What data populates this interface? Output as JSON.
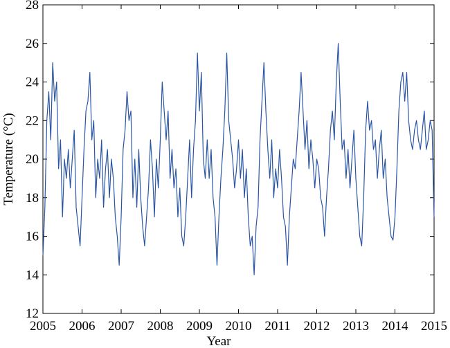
{
  "chart_data": {
    "type": "line",
    "x_label": "Year",
    "y_label": "Temperature (°C)",
    "xlim": [
      2005,
      2015
    ],
    "xticks": [
      2005,
      2006,
      2007,
      2008,
      2009,
      2010,
      2011,
      2012,
      2013,
      2014,
      2015
    ],
    "ylim": [
      12,
      28
    ],
    "yticks": [
      12,
      14,
      16,
      18,
      20,
      22,
      24,
      26,
      28
    ],
    "series": [
      {
        "color": "#2a55a5",
        "x": [
          2005,
          2005.05,
          2005.1,
          2005.15,
          2005.2,
          2005.25,
          2005.3,
          2005.35,
          2005.4,
          2005.45,
          2005.5,
          2005.55,
          2005.6,
          2005.65,
          2005.7,
          2005.75,
          2005.8,
          2005.85,
          2005.9,
          2005.95,
          2006,
          2006.05,
          2006.1,
          2006.15,
          2006.2,
          2006.25,
          2006.3,
          2006.35,
          2006.4,
          2006.45,
          2006.5,
          2006.55,
          2006.6,
          2006.65,
          2006.7,
          2006.75,
          2006.8,
          2006.85,
          2006.9,
          2006.95,
          2007,
          2007.05,
          2007.1,
          2007.15,
          2007.2,
          2007.25,
          2007.3,
          2007.35,
          2007.4,
          2007.45,
          2007.5,
          2007.55,
          2007.6,
          2007.65,
          2007.7,
          2007.75,
          2007.8,
          2007.85,
          2007.9,
          2007.95,
          2008,
          2008.05,
          2008.1,
          2008.15,
          2008.2,
          2008.25,
          2008.3,
          2008.35,
          2008.4,
          2008.45,
          2008.5,
          2008.55,
          2008.6,
          2008.65,
          2008.7,
          2008.75,
          2008.8,
          2008.85,
          2008.9,
          2008.95,
          2009,
          2009.05,
          2009.1,
          2009.15,
          2009.2,
          2009.25,
          2009.3,
          2009.35,
          2009.4,
          2009.45,
          2009.5,
          2009.55,
          2009.6,
          2009.65,
          2009.7,
          2009.75,
          2009.8,
          2009.85,
          2009.9,
          2009.95,
          2010,
          2010.05,
          2010.1,
          2010.15,
          2010.2,
          2010.25,
          2010.3,
          2010.35,
          2010.4,
          2010.45,
          2010.5,
          2010.55,
          2010.6,
          2010.65,
          2010.7,
          2010.75,
          2010.8,
          2010.85,
          2010.9,
          2010.95,
          2011,
          2011.05,
          2011.1,
          2011.15,
          2011.2,
          2011.25,
          2011.3,
          2011.35,
          2011.4,
          2011.45,
          2011.5,
          2011.55,
          2011.6,
          2011.65,
          2011.7,
          2011.75,
          2011.8,
          2011.85,
          2011.9,
          2011.95,
          2012,
          2012.05,
          2012.1,
          2012.15,
          2012.2,
          2012.25,
          2012.3,
          2012.35,
          2012.4,
          2012.45,
          2012.5,
          2012.55,
          2012.6,
          2012.65,
          2012.7,
          2012.75,
          2012.8,
          2012.85,
          2012.9,
          2012.95,
          2013,
          2013.05,
          2013.1,
          2013.15,
          2013.2,
          2013.25,
          2013.3,
          2013.35,
          2013.4,
          2013.45,
          2013.5,
          2013.55,
          2013.6,
          2013.65,
          2013.7,
          2013.75,
          2013.8,
          2013.85,
          2013.9,
          2013.95,
          2014,
          2014.05,
          2014.1,
          2014.15,
          2014.2,
          2014.25,
          2014.3,
          2014.35,
          2014.4,
          2014.45,
          2014.5,
          2014.55,
          2014.6,
          2014.65,
          2014.7,
          2014.75,
          2014.8,
          2014.85,
          2014.9,
          2014.95,
          2015
        ],
        "values": [
          15.0,
          17.5,
          22.0,
          23.5,
          21.0,
          25.0,
          23.0,
          24.0,
          19.5,
          21.0,
          17.0,
          20.0,
          19.0,
          20.5,
          18.5,
          20.0,
          21.5,
          17.5,
          16.5,
          15.5,
          18.0,
          20.5,
          22.5,
          23.0,
          24.5,
          21.0,
          22.0,
          18.0,
          20.0,
          19.0,
          21.0,
          17.5,
          19.5,
          20.5,
          18.0,
          20.0,
          19.0,
          17.0,
          16.0,
          14.5,
          17.0,
          20.5,
          21.5,
          23.5,
          22.0,
          22.5,
          18.0,
          20.0,
          17.5,
          20.5,
          18.0,
          16.5,
          15.5,
          17.0,
          18.5,
          21.0,
          19.5,
          17.0,
          20.0,
          18.5,
          21.0,
          24.0,
          22.5,
          21.0,
          22.5,
          19.0,
          20.5,
          18.5,
          19.5,
          17.0,
          18.5,
          16.0,
          15.5,
          17.0,
          19.0,
          21.0,
          18.0,
          20.5,
          22.0,
          25.5,
          22.5,
          24.5,
          20.0,
          19.0,
          21.0,
          19.0,
          20.5,
          18.0,
          17.0,
          14.5,
          17.0,
          19.0,
          20.5,
          22.5,
          25.5,
          22.0,
          21.0,
          20.0,
          18.5,
          19.5,
          21.0,
          19.0,
          20.5,
          18.0,
          19.5,
          17.0,
          15.5,
          16.0,
          14.0,
          16.5,
          17.5,
          21.0,
          23.0,
          25.0,
          22.5,
          20.5,
          19.0,
          21.0,
          18.0,
          19.5,
          18.5,
          20.5,
          19.0,
          17.0,
          16.5,
          14.5,
          17.0,
          18.5,
          20.0,
          19.5,
          21.0,
          22.5,
          24.5,
          22.5,
          20.5,
          22.0,
          19.5,
          21.0,
          20.0,
          18.5,
          20.0,
          19.5,
          18.0,
          17.5,
          16.0,
          18.0,
          19.5,
          21.5,
          22.5,
          21.0,
          24.0,
          26.0,
          23.0,
          20.5,
          21.0,
          19.0,
          20.5,
          18.5,
          20.0,
          21.5,
          19.0,
          17.5,
          16.0,
          15.5,
          18.0,
          21.5,
          23.0,
          21.5,
          22.0,
          20.5,
          21.0,
          19.0,
          20.5,
          21.5,
          19.0,
          20.0,
          18.0,
          17.0,
          16.0,
          15.8,
          17.0,
          19.5,
          22.5,
          24.0,
          24.5,
          23.0,
          24.5,
          22.0,
          21.0,
          20.5,
          21.5,
          22.0,
          21.0,
          20.5,
          21.5,
          22.5,
          20.5,
          21.0,
          22.0,
          21.5,
          17.0
        ]
      }
    ]
  }
}
